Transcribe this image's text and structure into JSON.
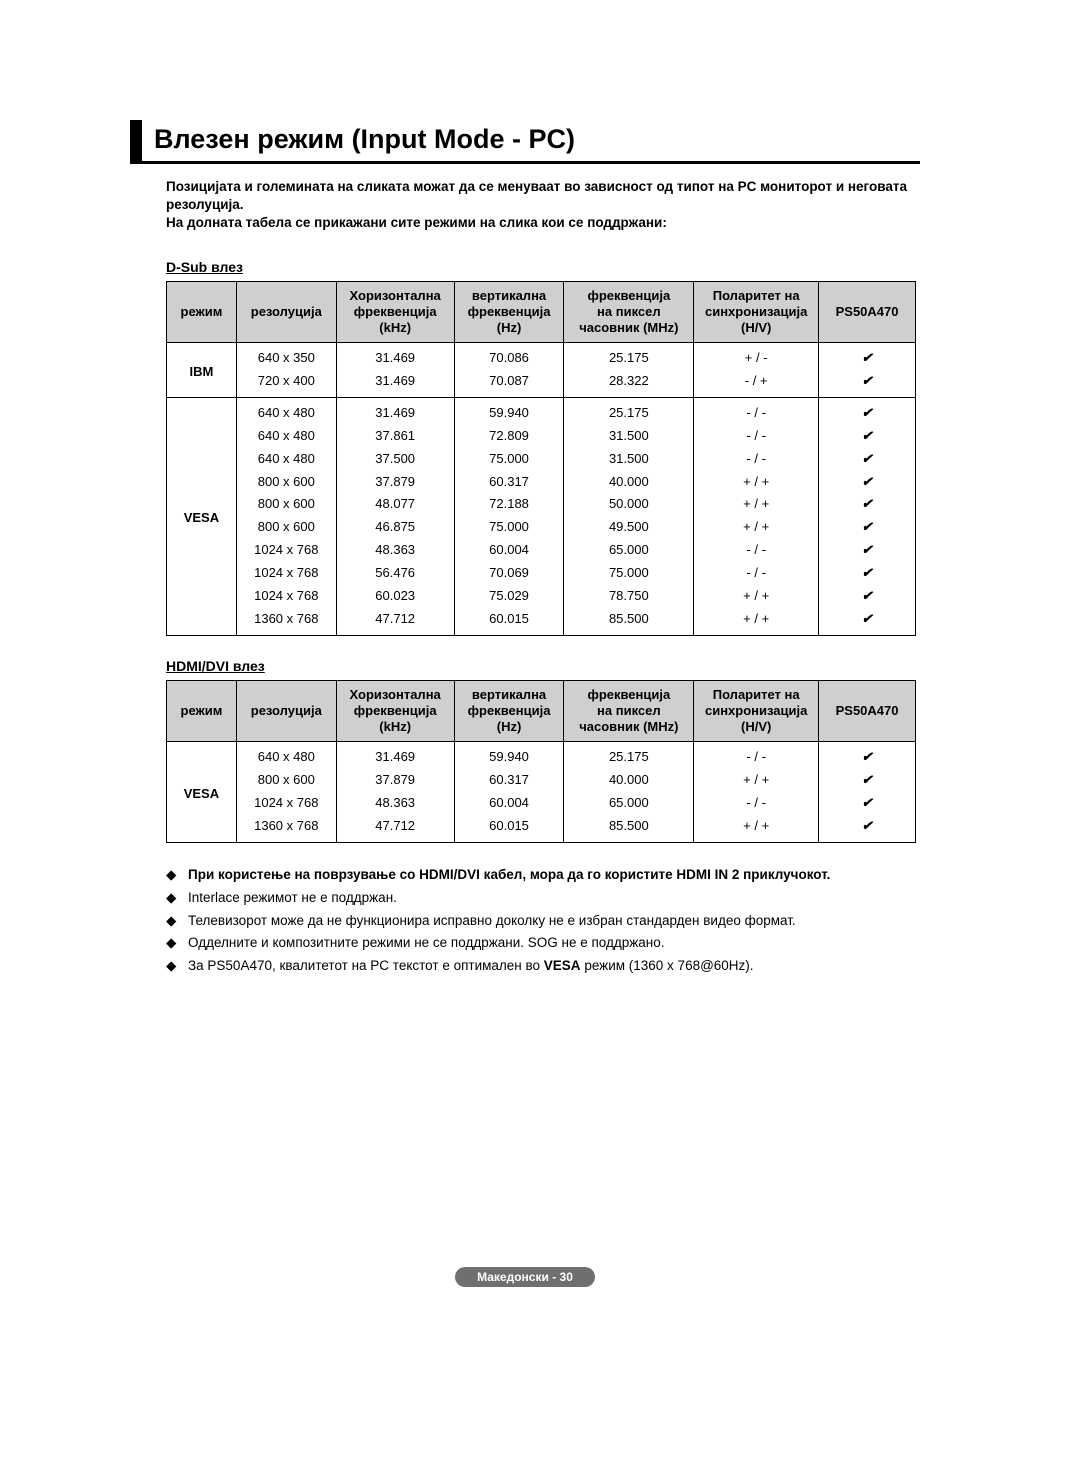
{
  "title": "Влезен режим (Input Mode - PC)",
  "intro_lines": [
    "Позицијата и големината на сликата можат да се менуваат во зависност од типот на PC мониторот и неговата резолуција.",
    "На долната табела се прикажани сите режими на слика кои се поддржани:"
  ],
  "check_glyph": "✔",
  "diamond_glyph": "◆",
  "columns": [
    "режим",
    "резолуција",
    "Хоризонтална фреквенција (kHz)",
    "вертикална фреквенција (Hz)",
    "фреквенција на пиксел часовник (MHz)",
    "Поларитет на синхронизација (H/V)",
    "PS50A470"
  ],
  "dsub": {
    "label": "D-Sub влез",
    "groups": [
      {
        "mode": "IBM",
        "rows": [
          [
            "640 x 350",
            "31.469",
            "70.086",
            "25.175",
            "+ / -",
            "check"
          ],
          [
            "720 x 400",
            "31.469",
            "70.087",
            "28.322",
            "- / +",
            "check"
          ]
        ]
      },
      {
        "mode": "VESA",
        "rows": [
          [
            "640 x 480",
            "31.469",
            "59.940",
            "25.175",
            "- / -",
            "check"
          ],
          [
            "640 x 480",
            "37.861",
            "72.809",
            "31.500",
            "- / -",
            "check"
          ],
          [
            "640 x 480",
            "37.500",
            "75.000",
            "31.500",
            "- / -",
            "check"
          ],
          [
            "800 x 600",
            "37.879",
            "60.317",
            "40.000",
            "+ / +",
            "check"
          ],
          [
            "800 x 600",
            "48.077",
            "72.188",
            "50.000",
            "+ / +",
            "check"
          ],
          [
            "800 x 600",
            "46.875",
            "75.000",
            "49.500",
            "+ / +",
            "check"
          ],
          [
            "1024 x 768",
            "48.363",
            "60.004",
            "65.000",
            "- / -",
            "check"
          ],
          [
            "1024 x 768",
            "56.476",
            "70.069",
            "75.000",
            "- / -",
            "check"
          ],
          [
            "1024 x 768",
            "60.023",
            "75.029",
            "78.750",
            "+ / +",
            "check"
          ],
          [
            "1360 x 768",
            "47.712",
            "60.015",
            "85.500",
            "+ / +",
            "check"
          ]
        ]
      }
    ]
  },
  "hdmi": {
    "label": "HDMI/DVI влез",
    "groups": [
      {
        "mode": "VESA",
        "rows": [
          [
            "640 x 480",
            "31.469",
            "59.940",
            "25.175",
            "- / -",
            "check"
          ],
          [
            "800 x 600",
            "37.879",
            "60.317",
            "40.000",
            "+ / +",
            "check"
          ],
          [
            "1024 x 768",
            "48.363",
            "60.004",
            "65.000",
            "- / -",
            "check"
          ],
          [
            "1360 x 768",
            "47.712",
            "60.015",
            "85.500",
            "+ / +",
            "check"
          ]
        ]
      }
    ]
  },
  "notes": [
    {
      "bold": true,
      "text": "При користење на поврзување со HDMI/DVI кабел, мора да го користите HDMI IN 2 приклучокот."
    },
    {
      "bold": false,
      "text": "Interlace режимот не е поддржан."
    },
    {
      "bold": false,
      "text": "Телевизорот може да не функционира исправно доколку не е избран стандарден видео формат."
    },
    {
      "bold": false,
      "text": "Одделните и композитните режими не се поддржани. SOG не е поддржано."
    },
    {
      "bold": false,
      "html": "За PS50A470, квалитетот на PC текстот е оптимален во <b>VESA</b> режим (1360 x 768@60Hz)."
    }
  ],
  "footer": "Македонски - 30",
  "colors": {
    "header_bg": "#cfcfcf",
    "border": "#000000",
    "footer_bg": "#6f6f6f",
    "footer_text": "#ffffff",
    "page_bg": "#ffffff",
    "text": "#000000"
  },
  "col_widths": [
    "70",
    "100",
    "118",
    "110",
    "130",
    "125",
    "97"
  ]
}
